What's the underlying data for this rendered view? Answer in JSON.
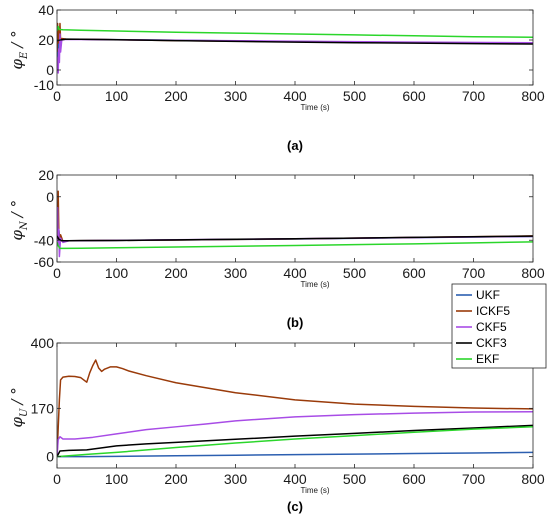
{
  "chart_data": [
    {
      "type": "line",
      "panel_label": "(a)",
      "ylabel": {
        "symbol": "φ",
        "subscript": "E",
        "unit": "/ °"
      },
      "xlabel": "Time (s)",
      "xlim": [
        0,
        800
      ],
      "ylim": [
        -10,
        40
      ],
      "xticks": [
        "0",
        "100",
        "200",
        "300",
        "400",
        "500",
        "600",
        "700",
        "800"
      ],
      "yticks": [
        "-10",
        "0",
        "20",
        "40"
      ],
      "ytick_values": [
        -10,
        0,
        20,
        40
      ],
      "series": [
        {
          "name": "UKF",
          "color": "#2c5fb0",
          "x": [
            0,
            1,
            2,
            3,
            4,
            5,
            8,
            15,
            40,
            200,
            400,
            600,
            800
          ],
          "y": [
            0,
            27,
            10,
            22,
            18,
            21,
            20.5,
            20.5,
            20.5,
            19.8,
            19,
            18.3,
            17.8
          ]
        },
        {
          "name": "ICKF5",
          "color": "#9a3b0a",
          "x": [
            0,
            1,
            2,
            3,
            4,
            5,
            6,
            8,
            15,
            40,
            200,
            400,
            600,
            800
          ],
          "y": [
            12,
            31,
            18,
            28,
            22,
            31,
            20,
            21,
            20.6,
            20.5,
            19.6,
            18.8,
            18.2,
            17.6
          ]
        },
        {
          "name": "CKF5",
          "color": "#a84ce6",
          "x": [
            0,
            1,
            2,
            3,
            4,
            5,
            6,
            8,
            15,
            40,
            200,
            400,
            600,
            800
          ],
          "y": [
            0,
            8,
            -2,
            14,
            5,
            24,
            12,
            20,
            20.4,
            20.3,
            19.8,
            19.2,
            18.6,
            18.2
          ]
        },
        {
          "name": "CKF3",
          "color": "#000000",
          "x": [
            0,
            3,
            8,
            15,
            40,
            100,
            200,
            300,
            400,
            500,
            600,
            700,
            800
          ],
          "y": [
            19.5,
            19.8,
            20.2,
            20.6,
            20.5,
            20.2,
            19.6,
            19.1,
            18.6,
            18.2,
            17.9,
            17.6,
            17.3
          ]
        },
        {
          "name": "EKF",
          "color": "#2bd62b",
          "x": [
            0,
            2,
            4,
            10,
            40,
            100,
            200,
            300,
            400,
            500,
            600,
            700,
            800
          ],
          "y": [
            26,
            29,
            27,
            26.8,
            26.5,
            26,
            25.2,
            24.6,
            24,
            23.4,
            22.8,
            22.2,
            21.8
          ]
        }
      ]
    },
    {
      "type": "line",
      "panel_label": "(b)",
      "ylabel": {
        "symbol": "φ",
        "subscript": "N",
        "unit": "/ °"
      },
      "xlabel": "Time (s)",
      "xlim": [
        0,
        800
      ],
      "ylim": [
        -60,
        20
      ],
      "xticks": [
        "0",
        "100",
        "200",
        "300",
        "400",
        "500",
        "600",
        "700",
        "800"
      ],
      "yticks": [
        "-60",
        "-40",
        "0",
        "20"
      ],
      "ytick_values": [
        -60,
        -40,
        0,
        20
      ],
      "series": [
        {
          "name": "UKF",
          "color": "#2c5fb0",
          "x": [
            0,
            1,
            2,
            3,
            5,
            8,
            15,
            40,
            200,
            400,
            600,
            800
          ],
          "y": [
            -35,
            -5,
            -38,
            -30,
            -40,
            -40.5,
            -40.4,
            -40.3,
            -39.8,
            -38.8,
            -37.6,
            -36.5
          ]
        },
        {
          "name": "ICKF5",
          "color": "#9a3b0a",
          "x": [
            0,
            1,
            2,
            3,
            4,
            6,
            10,
            20,
            40,
            200,
            400,
            600,
            800
          ],
          "y": [
            -40,
            -20,
            5,
            -30,
            -45,
            -35,
            -41,
            -40.5,
            -40.3,
            -39.8,
            -38.7,
            -37.4,
            -36
          ]
        },
        {
          "name": "CKF5",
          "color": "#a84ce6",
          "x": [
            0,
            1,
            2,
            3,
            4,
            6,
            10,
            20,
            40,
            200,
            400,
            600,
            800
          ],
          "y": [
            -25,
            -10,
            -45,
            -30,
            -55,
            -38,
            -42,
            -40.5,
            -40.4,
            -39.6,
            -38.6,
            -37.5,
            -36.4
          ]
        },
        {
          "name": "CKF3",
          "color": "#000000",
          "x": [
            0,
            3,
            8,
            20,
            40,
            100,
            200,
            300,
            400,
            500,
            600,
            700,
            800
          ],
          "y": [
            -36,
            -39,
            -40.5,
            -40.4,
            -40.3,
            -40.2,
            -39.7,
            -39.1,
            -38.6,
            -38,
            -37.4,
            -36.8,
            -36.2
          ]
        },
        {
          "name": "EKF",
          "color": "#2bd62b",
          "x": [
            0,
            2,
            5,
            10,
            40,
            100,
            200,
            300,
            400,
            500,
            600,
            700,
            800
          ],
          "y": [
            -42,
            -45,
            -47.5,
            -47.5,
            -47.3,
            -46.9,
            -46.2,
            -45.5,
            -44.8,
            -44,
            -43.3,
            -42.4,
            -41.5
          ]
        }
      ]
    },
    {
      "type": "line",
      "panel_label": "(c)",
      "ylabel": {
        "symbol": "φ",
        "subscript": "U",
        "unit": "/ °"
      },
      "xlabel": "Time (s)",
      "xlim": [
        0,
        800
      ],
      "ylim": [
        -40,
        400
      ],
      "xticks": [
        "0",
        "100",
        "200",
        "300",
        "400",
        "500",
        "600",
        "700",
        "800"
      ],
      "yticks": [
        "0",
        "170",
        "400"
      ],
      "ytick_values": [
        0,
        170,
        400
      ],
      "legend": {
        "placement": "top-right-outside",
        "entries": [
          "UKF",
          "ICKF5",
          "CKF5",
          "CKF3",
          "EKF"
        ]
      },
      "series": [
        {
          "name": "UKF",
          "color": "#2c5fb0",
          "x": [
            0,
            50,
            100,
            200,
            300,
            400,
            500,
            600,
            700,
            800
          ],
          "y": [
            0,
            0,
            1,
            3,
            5,
            7,
            9,
            11,
            13,
            15
          ]
        },
        {
          "name": "ICKF5",
          "color": "#9a3b0a",
          "x": [
            0,
            2,
            4,
            6,
            10,
            20,
            30,
            40,
            50,
            55,
            60,
            65,
            70,
            75,
            80,
            90,
            100,
            110,
            120,
            150,
            200,
            300,
            400,
            500,
            600,
            700,
            800
          ],
          "y": [
            0,
            100,
            200,
            270,
            280,
            283,
            282,
            278,
            262,
            295,
            320,
            340,
            312,
            300,
            308,
            316,
            316,
            310,
            302,
            285,
            260,
            225,
            200,
            185,
            177,
            171,
            168
          ]
        },
        {
          "name": "CKF5",
          "color": "#a84ce6",
          "x": [
            0,
            2,
            5,
            10,
            30,
            60,
            100,
            150,
            200,
            250,
            300,
            400,
            500,
            600,
            700,
            800
          ],
          "y": [
            0,
            60,
            70,
            62,
            62,
            68,
            80,
            95,
            105,
            115,
            126,
            140,
            148,
            153,
            157,
            158
          ]
        },
        {
          "name": "CKF3",
          "color": "#000000",
          "x": [
            0,
            5,
            20,
            50,
            100,
            150,
            200,
            300,
            400,
            500,
            600,
            700,
            800
          ],
          "y": [
            0,
            20,
            22,
            24,
            38,
            45,
            50,
            61,
            72,
            82,
            92,
            101,
            110
          ]
        },
        {
          "name": "EKF",
          "color": "#2bd62b",
          "x": [
            0,
            20,
            50,
            100,
            200,
            300,
            400,
            500,
            600,
            700,
            800
          ],
          "y": [
            0,
            3,
            8,
            15,
            32,
            48,
            62,
            74,
            86,
            97,
            105
          ]
        }
      ]
    }
  ]
}
